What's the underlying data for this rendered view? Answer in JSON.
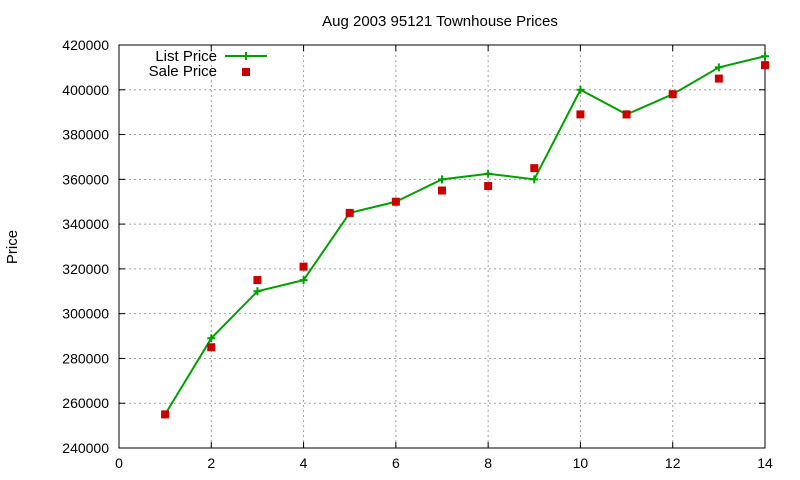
{
  "chart_data": {
    "type": "line",
    "title": "Aug 2003 95121 Townhouse Prices",
    "xlabel": "",
    "ylabel": "Price",
    "xlim": [
      0,
      14
    ],
    "ylim": [
      240000,
      420000
    ],
    "xticks": [
      0,
      2,
      4,
      6,
      8,
      10,
      12,
      14
    ],
    "yticks": [
      240000,
      260000,
      280000,
      300000,
      320000,
      340000,
      360000,
      380000,
      400000,
      420000
    ],
    "grid": true,
    "legend_position": "top-left",
    "series": [
      {
        "name": "List Price",
        "style": "line-with-plus-markers",
        "color": "#00a000",
        "x": [
          1,
          2,
          3,
          4,
          5,
          6,
          7,
          8,
          9,
          10,
          11,
          12,
          13,
          14
        ],
        "values": [
          255000,
          289000,
          310000,
          315000,
          345000,
          350000,
          360000,
          362500,
          360000,
          400000,
          389000,
          398000,
          410000,
          415000
        ]
      },
      {
        "name": "Sale Price",
        "style": "square-markers",
        "color": "#cc0000",
        "x": [
          1,
          2,
          3,
          4,
          5,
          6,
          7,
          8,
          9,
          10,
          11,
          12,
          13,
          14
        ],
        "values": [
          255000,
          285000,
          315000,
          321000,
          345000,
          350000,
          355000,
          357000,
          365000,
          389000,
          389000,
          398000,
          405000,
          411000
        ]
      }
    ]
  }
}
